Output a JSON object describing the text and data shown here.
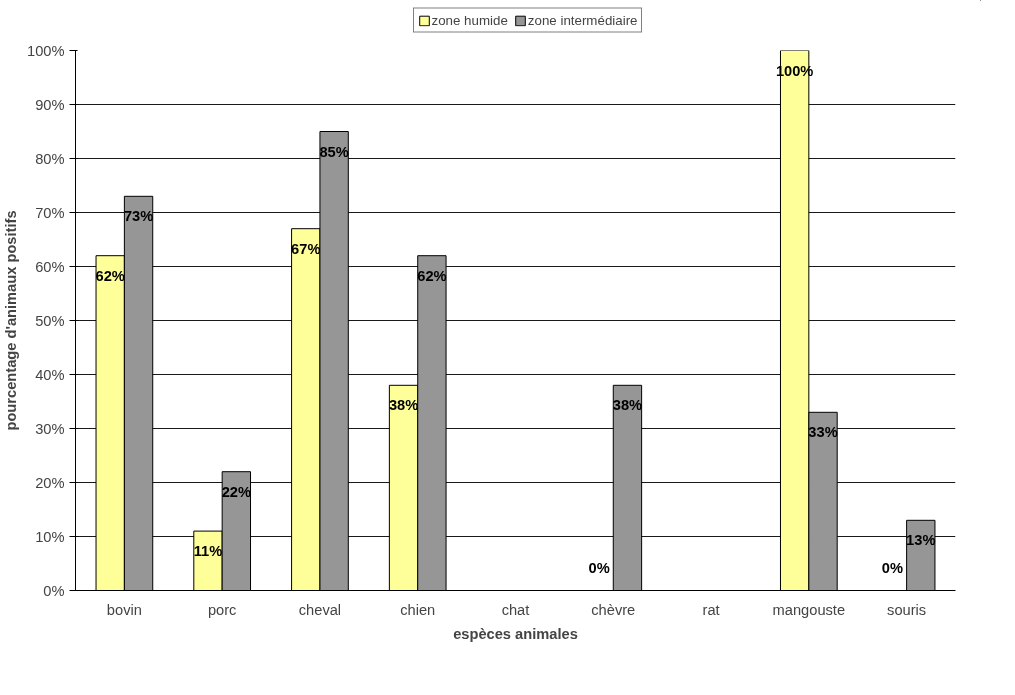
{
  "chart_data": {
    "type": "bar",
    "xlabel": "espèces animales",
    "ylabel": "pourcentage d'animaux positifs",
    "categories": [
      "bovin",
      "porc",
      "cheval",
      "chien",
      "chat",
      "chèvre",
      "rat",
      "mangouste",
      "souris"
    ],
    "series": [
      {
        "name": "zone humide",
        "color": "#ffff99",
        "values": [
          62,
          11,
          67,
          38,
          null,
          0,
          null,
          100,
          0
        ],
        "value_labels": [
          "62%",
          "11%",
          "67%",
          "38%",
          null,
          "0%",
          null,
          "100%",
          "0%"
        ]
      },
      {
        "name": "zone intermédiaire",
        "color": "#969696",
        "values": [
          73,
          22,
          85,
          62,
          null,
          38,
          null,
          33,
          13
        ],
        "value_labels": [
          "73%",
          "22%",
          "85%",
          "62%",
          null,
          "38%",
          null,
          "33%",
          "13%"
        ]
      }
    ],
    "ylim": [
      0,
      100
    ],
    "yticks": [
      {
        "value": 0,
        "label": "0%"
      },
      {
        "value": 10,
        "label": "10%"
      },
      {
        "value": 20,
        "label": "20%"
      },
      {
        "value": 30,
        "label": "30%"
      },
      {
        "value": 40,
        "label": "40%"
      },
      {
        "value": 50,
        "label": "50%"
      },
      {
        "value": 60,
        "label": "60%"
      },
      {
        "value": 70,
        "label": "70%"
      },
      {
        "value": 80,
        "label": "80%"
      },
      {
        "value": 90,
        "label": "90%"
      },
      {
        "value": 100,
        "label": "100%"
      }
    ],
    "grid": "y",
    "legend": "top"
  }
}
